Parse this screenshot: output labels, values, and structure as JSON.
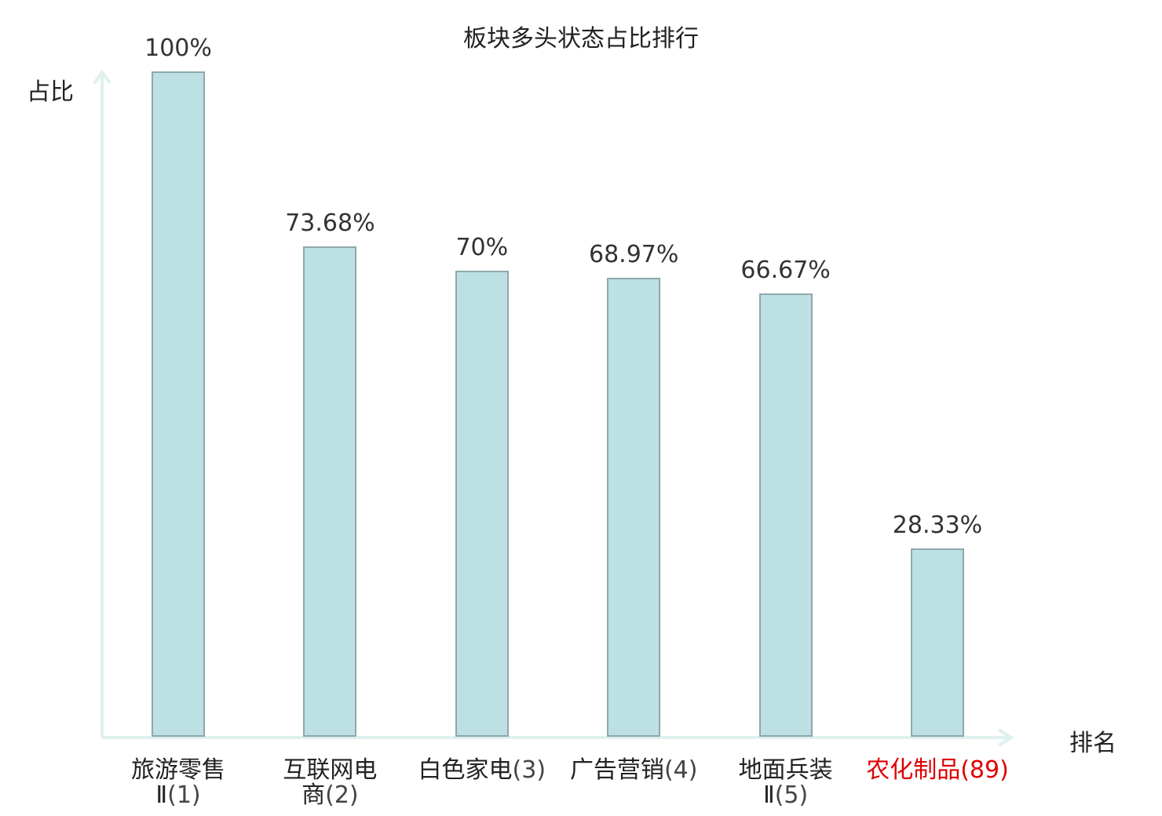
{
  "chart_data": {
    "type": "bar",
    "title": "板块多头状态占比排行",
    "ylabel": "占比",
    "xlabel": "排名",
    "ylim": [
      0,
      100
    ],
    "grid": false,
    "categories": [
      {
        "name": "旅游零售",
        "name2": "Ⅱ",
        "rank": "(1)",
        "highlight": false
      },
      {
        "name": "互联网电",
        "name2": "商",
        "rank": "(2)",
        "highlight": false
      },
      {
        "name": "白色家电",
        "name2": "",
        "rank": "(3)",
        "highlight": false
      },
      {
        "name": "广告营销",
        "name2": "",
        "rank": "(4)",
        "highlight": false
      },
      {
        "name": "地面兵装",
        "name2": "Ⅱ",
        "rank": "(5)",
        "highlight": false
      },
      {
        "name": "农化制品",
        "name2": "",
        "rank": "(89)",
        "highlight": true
      }
    ],
    "values": [
      100,
      73.68,
      70,
      68.97,
      66.67,
      28.33
    ],
    "value_labels": [
      "100%",
      "73.68%",
      "70%",
      "68.97%",
      "66.67%",
      "28.33%"
    ]
  },
  "colors": {
    "bar_fill": "#bce0e3",
    "bar_border": "#8fa8ab",
    "axis": "#dff1ee",
    "highlight": "#e00000",
    "text": "#222222"
  }
}
